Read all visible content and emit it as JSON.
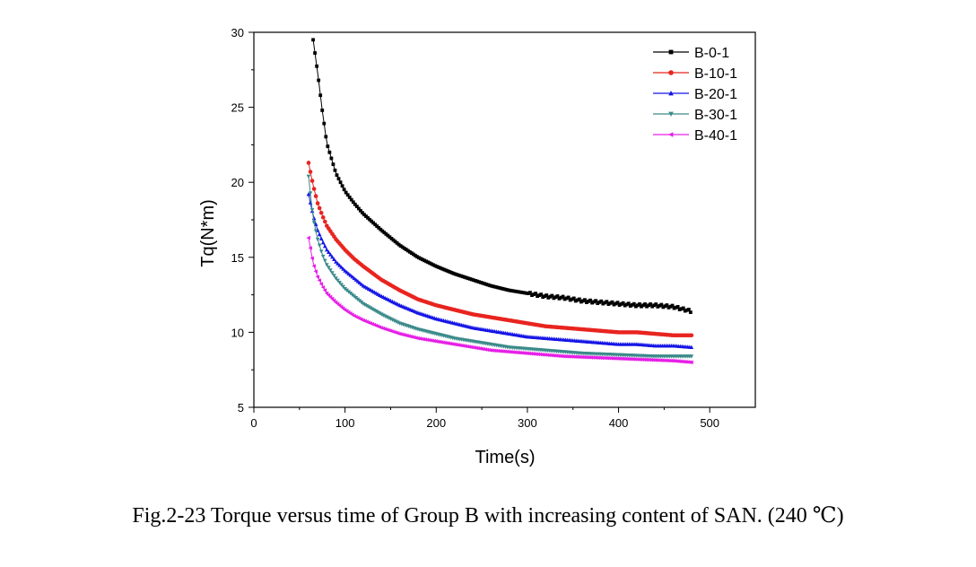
{
  "caption": "Fig.2-23 Torque versus time of Group B with increasing content of SAN. (240 ℃)",
  "chart_data": {
    "type": "line",
    "title": "",
    "xlabel": "Time(s)",
    "ylabel": "Tq(N*m)",
    "xlim": [
      0,
      550
    ],
    "ylim": [
      5,
      30
    ],
    "xticks": [
      0,
      100,
      200,
      300,
      400,
      500
    ],
    "yticks": [
      5,
      10,
      15,
      20,
      25,
      30
    ],
    "grid": false,
    "legend_position": "top-right",
    "x": [
      60,
      65,
      70,
      75,
      80,
      90,
      100,
      110,
      120,
      140,
      160,
      180,
      200,
      220,
      240,
      260,
      280,
      300,
      320,
      340,
      360,
      380,
      400,
      420,
      440,
      460,
      480
    ],
    "series": [
      {
        "name": "B-0-1",
        "color": "#000000",
        "marker": "square",
        "start": 65,
        "values": [
          null,
          29.5,
          27.3,
          24.8,
          22.6,
          20.6,
          19.4,
          18.6,
          17.9,
          16.8,
          15.8,
          15.0,
          14.4,
          13.9,
          13.5,
          13.1,
          12.8,
          12.6,
          12.4,
          12.3,
          12.1,
          12.0,
          11.9,
          11.8,
          11.8,
          11.7,
          11.4
        ]
      },
      {
        "name": "B-10-1",
        "color": "#e8241f",
        "marker": "circle",
        "start": 60,
        "values": [
          21.3,
          19.8,
          18.6,
          17.8,
          17.1,
          16.2,
          15.5,
          14.9,
          14.4,
          13.5,
          12.8,
          12.2,
          11.8,
          11.5,
          11.2,
          11.0,
          10.8,
          10.6,
          10.4,
          10.3,
          10.2,
          10.1,
          10.0,
          10.0,
          9.9,
          9.8,
          9.8
        ]
      },
      {
        "name": "B-20-1",
        "color": "#1515e6",
        "marker": "triangle-up",
        "start": 60,
        "values": [
          19.2,
          17.8,
          16.8,
          16.1,
          15.5,
          14.7,
          14.1,
          13.6,
          13.1,
          12.4,
          11.8,
          11.3,
          10.9,
          10.6,
          10.3,
          10.1,
          9.9,
          9.7,
          9.6,
          9.5,
          9.4,
          9.3,
          9.2,
          9.2,
          9.1,
          9.1,
          9.0
        ]
      },
      {
        "name": "B-30-1",
        "color": "#3b8a8a",
        "marker": "triangle-down",
        "start": 60,
        "values": [
          20.4,
          17.6,
          16.2,
          15.2,
          14.5,
          13.6,
          12.9,
          12.4,
          11.9,
          11.2,
          10.6,
          10.2,
          9.9,
          9.6,
          9.4,
          9.2,
          9.0,
          8.9,
          8.8,
          8.7,
          8.6,
          8.55,
          8.5,
          8.45,
          8.4,
          8.4,
          8.4
        ]
      },
      {
        "name": "B-40-1",
        "color": "#e61ee6",
        "marker": "triangle-left",
        "start": 60,
        "values": [
          16.3,
          14.6,
          13.7,
          13.1,
          12.6,
          12.0,
          11.5,
          11.1,
          10.8,
          10.3,
          9.9,
          9.6,
          9.4,
          9.2,
          9.0,
          8.8,
          8.7,
          8.6,
          8.5,
          8.4,
          8.35,
          8.3,
          8.25,
          8.2,
          8.15,
          8.1,
          8.0
        ]
      }
    ]
  }
}
